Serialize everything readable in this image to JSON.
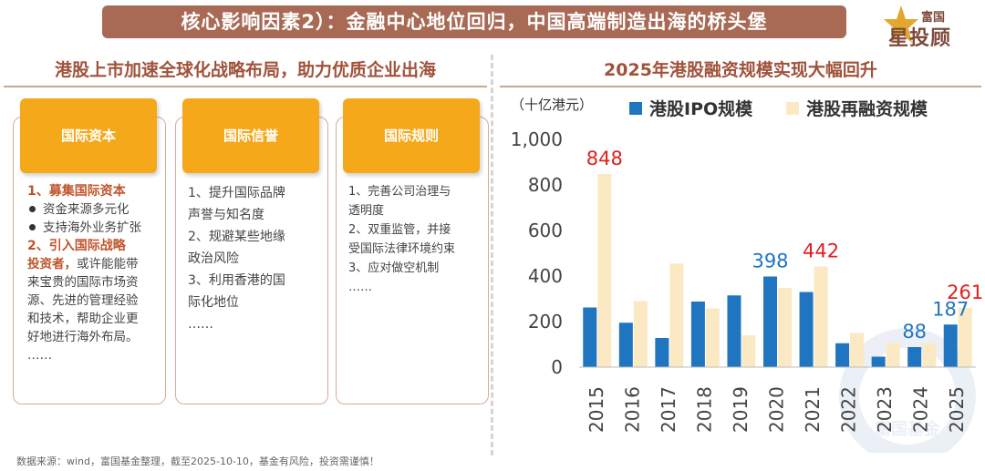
{
  "header": {
    "title": "核心影响因素2）：金融中心地位回归，中国高端制造出海的桥头堡",
    "logo_top": "富国",
    "logo_main": "星投顾"
  },
  "left_panel": {
    "title": "港股上市加速全球化战略布局，助力优质企业出海",
    "cards": [
      {
        "heading": "国际资本",
        "h1": "1、募集国际资本",
        "bullets": [
          "资金来源多元化",
          "支持海外业务扩张"
        ],
        "h2": "2、引入国际战略",
        "h2b": "投资者，",
        "lines": [
          "或许能能带",
          "来宝贵的国际市场资",
          "源、先进的管理经验",
          "和技术，帮助企业更",
          "好地进行海外布局。",
          "……"
        ]
      },
      {
        "heading": "国际信誉",
        "lines": [
          "1、提升国际品牌",
          "声誉与知名度",
          "2、规避某些地缘",
          "政治风险",
          "3、利用香港的国",
          "际化地位",
          "……"
        ]
      },
      {
        "heading": "国际规则",
        "lines": [
          "1、完善公司治理与",
          "透明度",
          "2、双重监管，并接",
          "受国际法律环境约束",
          "3、应对做空机制",
          "……"
        ]
      }
    ]
  },
  "right_panel": {
    "title": "2025年港股融资规模实现大幅回升"
  },
  "chart_data": {
    "type": "bar",
    "unit_label": "（十亿港元）",
    "categories": [
      "2015",
      "2016",
      "2017",
      "2018",
      "2019",
      "2020",
      "2021",
      "2022",
      "2023",
      "2024",
      "2025"
    ],
    "series": [
      {
        "name": "港股IPO规模",
        "color": "#1f75c0",
        "values": [
          262,
          195,
          128,
          288,
          315,
          398,
          330,
          105,
          46,
          88,
          187
        ]
      },
      {
        "name": "港股再融资规模",
        "color": "#fbe9c4",
        "values": [
          848,
          290,
          455,
          258,
          140,
          348,
          442,
          150,
          105,
          105,
          261
        ]
      }
    ],
    "data_labels": [
      {
        "category": "2015",
        "series": 1,
        "text": "848",
        "color": "#e02020"
      },
      {
        "category": "2020",
        "series": 0,
        "text": "398",
        "color": "#1f75c0"
      },
      {
        "category": "2021",
        "series": 1,
        "text": "442",
        "color": "#e02020"
      },
      {
        "category": "2024",
        "series": 0,
        "text": "88",
        "color": "#1f75c0"
      },
      {
        "category": "2025",
        "series": 0,
        "text": "187",
        "color": "#1f75c0"
      },
      {
        "category": "2025",
        "series": 1,
        "text": "261",
        "color": "#e02020"
      }
    ],
    "yticks": [
      "0",
      "200",
      "400",
      "600",
      "800",
      "1,000"
    ],
    "ylim": [
      0,
      1000
    ],
    "grid": false,
    "legend_position": "top"
  },
  "watermark": "富国基金",
  "footer": {
    "source": "数据来源：wind，富国基金整理，截至2025-10-10，基金有风险，投资需谨慎！"
  }
}
